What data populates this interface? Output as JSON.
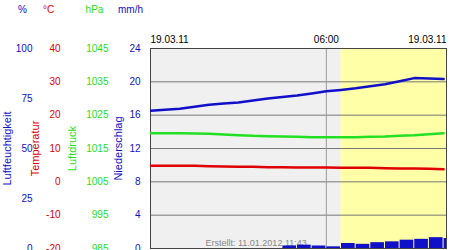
{
  "chart_data": {
    "type": "line",
    "x": [
      0,
      0.5,
      1,
      1.5,
      2,
      2.5,
      3,
      3.5,
      4,
      4.5,
      5,
      5.5,
      6,
      6.5,
      7,
      7.5,
      8,
      8.5,
      9,
      9.5,
      10
    ],
    "xlim": [
      0,
      10.1
    ],
    "xticks": [
      {
        "value": 0,
        "label": "19.03.11"
      },
      {
        "value": 6,
        "label": "06:00"
      },
      {
        "value": 10.1,
        "label": "19.03.11"
      }
    ],
    "daylight": [
      6.5,
      10.1
    ],
    "grid": true,
    "annotation": "Erstellt: 11.01.2012 11:43",
    "series": [
      {
        "label": "Luftfeuchtigkeit",
        "unit": "%",
        "type": "line",
        "color": "#1010c8",
        "ylim": [
          0,
          100
        ],
        "yticks": [
          0,
          25,
          50,
          75,
          100
        ],
        "values": [
          68.9,
          69.4,
          69.9,
          70.9,
          71.9,
          72.5,
          73.0,
          74.0,
          75.0,
          75.8,
          76.5,
          77.5,
          78.6,
          79.3,
          80.1,
          81.1,
          82.1,
          83.6,
          85.2,
          85.0,
          84.7
        ]
      },
      {
        "label": "Temperatur",
        "unit": "°C",
        "type": "line",
        "color": "#e00000",
        "ylim": [
          -20,
          40
        ],
        "yticks": [
          -20,
          -10,
          0,
          10,
          20,
          30,
          40
        ],
        "values": [
          4.8,
          4.8,
          4.8,
          4.8,
          4.7,
          4.6,
          4.5,
          4.5,
          4.4,
          4.4,
          4.3,
          4.3,
          4.3,
          4.2,
          4.2,
          4.2,
          4.1,
          4.0,
          4.0,
          3.9,
          3.8
        ]
      },
      {
        "label": "Luftdruck",
        "unit": "hPa",
        "type": "line",
        "color": "#22e022",
        "ylim": [
          985,
          1045
        ],
        "yticks": [
          985,
          995,
          1005,
          1015,
          1025,
          1035,
          1045
        ],
        "values": [
          1019.6,
          1019.6,
          1019.6,
          1019.5,
          1019.4,
          1019.2,
          1019.0,
          1018.8,
          1018.7,
          1018.6,
          1018.5,
          1018.4,
          1018.4,
          1018.4,
          1018.4,
          1018.5,
          1018.6,
          1018.8,
          1019.0,
          1019.3,
          1019.6
        ]
      },
      {
        "label": "Niederschlag",
        "unit": "mm/h",
        "type": "bar",
        "color": "#1010c8",
        "ylim": [
          0,
          24
        ],
        "yticks": [
          0,
          4,
          8,
          12,
          16,
          20,
          24
        ],
        "values": [
          0,
          0,
          0,
          0,
          0,
          0,
          0,
          0,
          0,
          0.3,
          0.4,
          0.3,
          0.2,
          0.6,
          0.5,
          0.7,
          0.8,
          1.0,
          1.1,
          1.3,
          1.2
        ]
      }
    ]
  }
}
